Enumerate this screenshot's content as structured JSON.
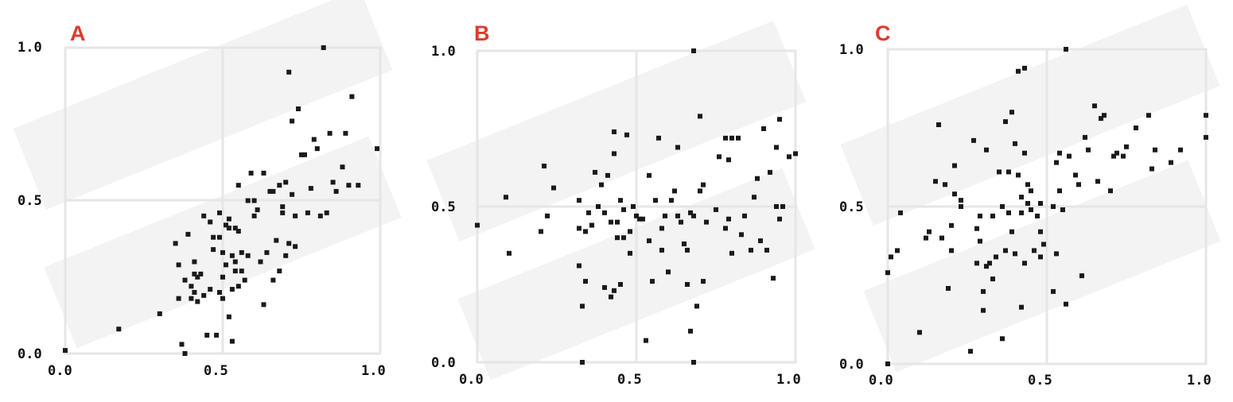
{
  "colors": {
    "letter": "#e03a2f",
    "point": "#1a1a1a",
    "frame": "#e6e6e6"
  },
  "chart_data": [
    {
      "type": "scatter",
      "panel": "A",
      "xlim": [
        0,
        1
      ],
      "ylim": [
        0,
        1
      ],
      "xticks": [
        "0.0",
        "0.5",
        "1.0"
      ],
      "yticks": [
        "0.0",
        "0.5",
        "1.0"
      ],
      "grid": true,
      "points": [
        [
          0.0,
          0.01
        ],
        [
          0.17,
          0.08
        ],
        [
          0.3,
          0.13
        ],
        [
          0.35,
          0.36
        ],
        [
          0.36,
          0.29
        ],
        [
          0.36,
          0.18
        ],
        [
          0.37,
          0.03
        ],
        [
          0.38,
          0.0
        ],
        [
          0.38,
          0.24
        ],
        [
          0.39,
          0.39
        ],
        [
          0.4,
          0.22
        ],
        [
          0.4,
          0.18
        ],
        [
          0.41,
          0.2
        ],
        [
          0.41,
          0.3
        ],
        [
          0.42,
          0.17
        ],
        [
          0.42,
          0.25
        ],
        [
          0.43,
          0.26
        ],
        [
          0.44,
          0.45
        ],
        [
          0.45,
          0.06
        ],
        [
          0.46,
          0.43
        ],
        [
          0.46,
          0.21
        ],
        [
          0.47,
          0.38
        ],
        [
          0.47,
          0.34
        ],
        [
          0.48,
          0.06
        ],
        [
          0.49,
          0.2
        ],
        [
          0.49,
          0.46
        ],
        [
          0.49,
          0.38
        ],
        [
          0.5,
          0.33
        ],
        [
          0.5,
          0.25
        ],
        [
          0.5,
          0.18
        ],
        [
          0.51,
          0.42
        ],
        [
          0.51,
          0.29
        ],
        [
          0.52,
          0.12
        ],
        [
          0.52,
          0.41
        ],
        [
          0.52,
          0.44
        ],
        [
          0.53,
          0.21
        ],
        [
          0.53,
          0.32
        ],
        [
          0.53,
          0.04
        ],
        [
          0.54,
          0.41
        ],
        [
          0.54,
          0.3
        ],
        [
          0.54,
          0.27
        ],
        [
          0.55,
          0.4
        ],
        [
          0.55,
          0.22
        ],
        [
          0.55,
          0.55
        ],
        [
          0.56,
          0.33
        ],
        [
          0.56,
          0.27
        ],
        [
          0.57,
          0.24
        ],
        [
          0.58,
          0.32
        ],
        [
          0.58,
          0.5
        ],
        [
          0.59,
          0.59
        ],
        [
          0.6,
          0.45
        ],
        [
          0.6,
          0.5
        ],
        [
          0.61,
          0.47
        ],
        [
          0.62,
          0.3
        ],
        [
          0.63,
          0.59
        ],
        [
          0.64,
          0.33
        ],
        [
          0.65,
          0.53
        ],
        [
          0.66,
          0.53
        ],
        [
          0.66,
          0.24
        ],
        [
          0.67,
          0.37
        ],
        [
          0.68,
          0.27
        ],
        [
          0.68,
          0.55
        ],
        [
          0.69,
          0.46
        ],
        [
          0.69,
          0.48
        ],
        [
          0.7,
          0.32
        ],
        [
          0.7,
          0.56
        ],
        [
          0.71,
          0.36
        ],
        [
          0.71,
          0.92
        ],
        [
          0.72,
          0.76
        ],
        [
          0.72,
          0.52
        ],
        [
          0.73,
          0.45
        ],
        [
          0.73,
          0.35
        ],
        [
          0.74,
          0.8
        ],
        [
          0.75,
          0.65
        ],
        [
          0.76,
          0.65
        ],
        [
          0.77,
          0.46
        ],
        [
          0.78,
          0.54
        ],
        [
          0.79,
          0.7
        ],
        [
          0.8,
          0.67
        ],
        [
          0.81,
          0.45
        ],
        [
          0.82,
          1.0
        ],
        [
          0.83,
          0.46
        ],
        [
          0.84,
          0.72
        ],
        [
          0.85,
          0.56
        ],
        [
          0.86,
          0.53
        ],
        [
          0.88,
          0.61
        ],
        [
          0.89,
          0.72
        ],
        [
          0.9,
          0.55
        ],
        [
          0.91,
          0.84
        ],
        [
          0.93,
          0.55
        ],
        [
          0.99,
          0.67
        ],
        [
          0.41,
          0.26
        ],
        [
          0.44,
          0.19
        ],
        [
          0.63,
          0.16
        ]
      ]
    },
    {
      "type": "scatter",
      "panel": "B",
      "xlim": [
        0,
        1
      ],
      "ylim": [
        0,
        1
      ],
      "xticks": [
        "0.0",
        "0.5",
        "1.0"
      ],
      "yticks": [
        "0.0",
        "0.5",
        "1.0"
      ],
      "grid": true,
      "points": [
        [
          0.0,
          0.44
        ],
        [
          0.09,
          0.53
        ],
        [
          0.1,
          0.35
        ],
        [
          0.2,
          0.42
        ],
        [
          0.21,
          0.63
        ],
        [
          0.22,
          0.47
        ],
        [
          0.24,
          0.56
        ],
        [
          0.32,
          0.31
        ],
        [
          0.32,
          0.43
        ],
        [
          0.32,
          0.52
        ],
        [
          0.33,
          0.0
        ],
        [
          0.33,
          0.18
        ],
        [
          0.34,
          0.26
        ],
        [
          0.34,
          0.42
        ],
        [
          0.35,
          0.48
        ],
        [
          0.36,
          0.44
        ],
        [
          0.37,
          0.61
        ],
        [
          0.38,
          0.5
        ],
        [
          0.39,
          0.57
        ],
        [
          0.4,
          0.24
        ],
        [
          0.4,
          0.48
        ],
        [
          0.41,
          0.6
        ],
        [
          0.42,
          0.21
        ],
        [
          0.42,
          0.45
        ],
        [
          0.43,
          0.23
        ],
        [
          0.43,
          0.67
        ],
        [
          0.43,
          0.74
        ],
        [
          0.44,
          0.4
        ],
        [
          0.44,
          0.45
        ],
        [
          0.45,
          0.25
        ],
        [
          0.45,
          0.52
        ],
        [
          0.46,
          0.49
        ],
        [
          0.46,
          0.4
        ],
        [
          0.47,
          0.73
        ],
        [
          0.48,
          0.42
        ],
        [
          0.48,
          0.35
        ],
        [
          0.49,
          0.5
        ],
        [
          0.5,
          0.47
        ],
        [
          0.51,
          0.46
        ],
        [
          0.52,
          0.46
        ],
        [
          0.53,
          0.07
        ],
        [
          0.54,
          0.39
        ],
        [
          0.54,
          0.6
        ],
        [
          0.55,
          0.26
        ],
        [
          0.56,
          0.52
        ],
        [
          0.57,
          0.72
        ],
        [
          0.58,
          0.43
        ],
        [
          0.58,
          0.36
        ],
        [
          0.59,
          0.47
        ],
        [
          0.6,
          0.29
        ],
        [
          0.61,
          0.52
        ],
        [
          0.62,
          0.55
        ],
        [
          0.63,
          0.47
        ],
        [
          0.63,
          0.69
        ],
        [
          0.64,
          0.45
        ],
        [
          0.65,
          0.38
        ],
        [
          0.66,
          0.25
        ],
        [
          0.66,
          0.36
        ],
        [
          0.67,
          0.48
        ],
        [
          0.67,
          0.1
        ],
        [
          0.68,
          0.47
        ],
        [
          0.68,
          0.0
        ],
        [
          0.68,
          1.0
        ],
        [
          0.69,
          0.18
        ],
        [
          0.7,
          0.55
        ],
        [
          0.7,
          0.79
        ],
        [
          0.71,
          0.57
        ],
        [
          0.71,
          0.26
        ],
        [
          0.72,
          0.45
        ],
        [
          0.75,
          0.49
        ],
        [
          0.76,
          0.66
        ],
        [
          0.78,
          0.43
        ],
        [
          0.78,
          0.72
        ],
        [
          0.79,
          0.46
        ],
        [
          0.79,
          0.65
        ],
        [
          0.8,
          0.35
        ],
        [
          0.8,
          0.72
        ],
        [
          0.82,
          0.72
        ],
        [
          0.83,
          0.41
        ],
        [
          0.84,
          0.47
        ],
        [
          0.86,
          0.36
        ],
        [
          0.87,
          0.53
        ],
        [
          0.88,
          0.59
        ],
        [
          0.89,
          0.39
        ],
        [
          0.9,
          0.75
        ],
        [
          0.91,
          0.36
        ],
        [
          0.92,
          0.61
        ],
        [
          0.93,
          0.27
        ],
        [
          0.94,
          0.5
        ],
        [
          0.94,
          0.69
        ],
        [
          0.95,
          0.46
        ],
        [
          0.95,
          0.78
        ],
        [
          0.96,
          0.5
        ],
        [
          0.98,
          0.66
        ],
        [
          1.0,
          0.67
        ]
      ]
    },
    {
      "type": "scatter",
      "panel": "C",
      "xlim": [
        0,
        1
      ],
      "ylim": [
        0,
        1
      ],
      "xticks": [
        "0.0",
        "0.5",
        "1.0"
      ],
      "yticks": [
        "0.0",
        "0.5",
        "1.0"
      ],
      "grid": true,
      "points": [
        [
          0.0,
          0.0
        ],
        [
          0.0,
          0.29
        ],
        [
          0.01,
          0.34
        ],
        [
          0.03,
          0.36
        ],
        [
          0.04,
          0.48
        ],
        [
          0.1,
          0.1
        ],
        [
          0.12,
          0.4
        ],
        [
          0.13,
          0.42
        ],
        [
          0.15,
          0.58
        ],
        [
          0.16,
          0.76
        ],
        [
          0.17,
          0.4
        ],
        [
          0.18,
          0.57
        ],
        [
          0.19,
          0.24
        ],
        [
          0.2,
          0.36
        ],
        [
          0.2,
          0.44
        ],
        [
          0.21,
          0.63
        ],
        [
          0.21,
          0.54
        ],
        [
          0.23,
          0.52
        ],
        [
          0.23,
          0.5
        ],
        [
          0.26,
          0.04
        ],
        [
          0.27,
          0.71
        ],
        [
          0.28,
          0.43
        ],
        [
          0.28,
          0.32
        ],
        [
          0.29,
          0.47
        ],
        [
          0.29,
          0.39
        ],
        [
          0.3,
          0.23
        ],
        [
          0.3,
          0.17
        ],
        [
          0.31,
          0.31
        ],
        [
          0.31,
          0.68
        ],
        [
          0.32,
          0.32
        ],
        [
          0.33,
          0.47
        ],
        [
          0.33,
          0.27
        ],
        [
          0.34,
          0.34
        ],
        [
          0.35,
          0.61
        ],
        [
          0.36,
          0.5
        ],
        [
          0.36,
          0.08
        ],
        [
          0.37,
          0.36
        ],
        [
          0.37,
          0.77
        ],
        [
          0.38,
          0.48
        ],
        [
          0.38,
          0.61
        ],
        [
          0.39,
          0.42
        ],
        [
          0.39,
          0.8
        ],
        [
          0.4,
          0.7
        ],
        [
          0.4,
          0.35
        ],
        [
          0.41,
          0.93
        ],
        [
          0.41,
          0.6
        ],
        [
          0.42,
          0.48
        ],
        [
          0.42,
          0.53
        ],
        [
          0.42,
          0.18
        ],
        [
          0.43,
          0.94
        ],
        [
          0.43,
          0.32
        ],
        [
          0.43,
          0.67
        ],
        [
          0.44,
          0.57
        ],
        [
          0.44,
          0.51
        ],
        [
          0.45,
          0.55
        ],
        [
          0.45,
          0.49
        ],
        [
          0.46,
          0.36
        ],
        [
          0.47,
          0.47
        ],
        [
          0.48,
          0.42
        ],
        [
          0.48,
          0.51
        ],
        [
          0.48,
          0.34
        ],
        [
          0.49,
          0.38
        ],
        [
          0.52,
          0.23
        ],
        [
          0.52,
          0.5
        ],
        [
          0.53,
          0.35
        ],
        [
          0.53,
          0.64
        ],
        [
          0.54,
          0.55
        ],
        [
          0.54,
          0.67
        ],
        [
          0.55,
          0.49
        ],
        [
          0.56,
          1.0
        ],
        [
          0.56,
          0.19
        ],
        [
          0.57,
          0.66
        ],
        [
          0.59,
          0.6
        ],
        [
          0.6,
          0.57
        ],
        [
          0.61,
          0.28
        ],
        [
          0.62,
          0.72
        ],
        [
          0.63,
          0.68
        ],
        [
          0.65,
          0.82
        ],
        [
          0.66,
          0.58
        ],
        [
          0.67,
          0.78
        ],
        [
          0.68,
          0.79
        ],
        [
          0.7,
          0.55
        ],
        [
          0.71,
          0.66
        ],
        [
          0.72,
          0.67
        ],
        [
          0.74,
          0.66
        ],
        [
          0.75,
          0.69
        ],
        [
          0.78,
          0.75
        ],
        [
          0.82,
          0.79
        ],
        [
          0.83,
          0.62
        ],
        [
          0.84,
          0.68
        ],
        [
          0.89,
          0.64
        ],
        [
          0.92,
          0.68
        ],
        [
          1.0,
          0.72
        ],
        [
          1.0,
          0.79
        ]
      ]
    }
  ]
}
